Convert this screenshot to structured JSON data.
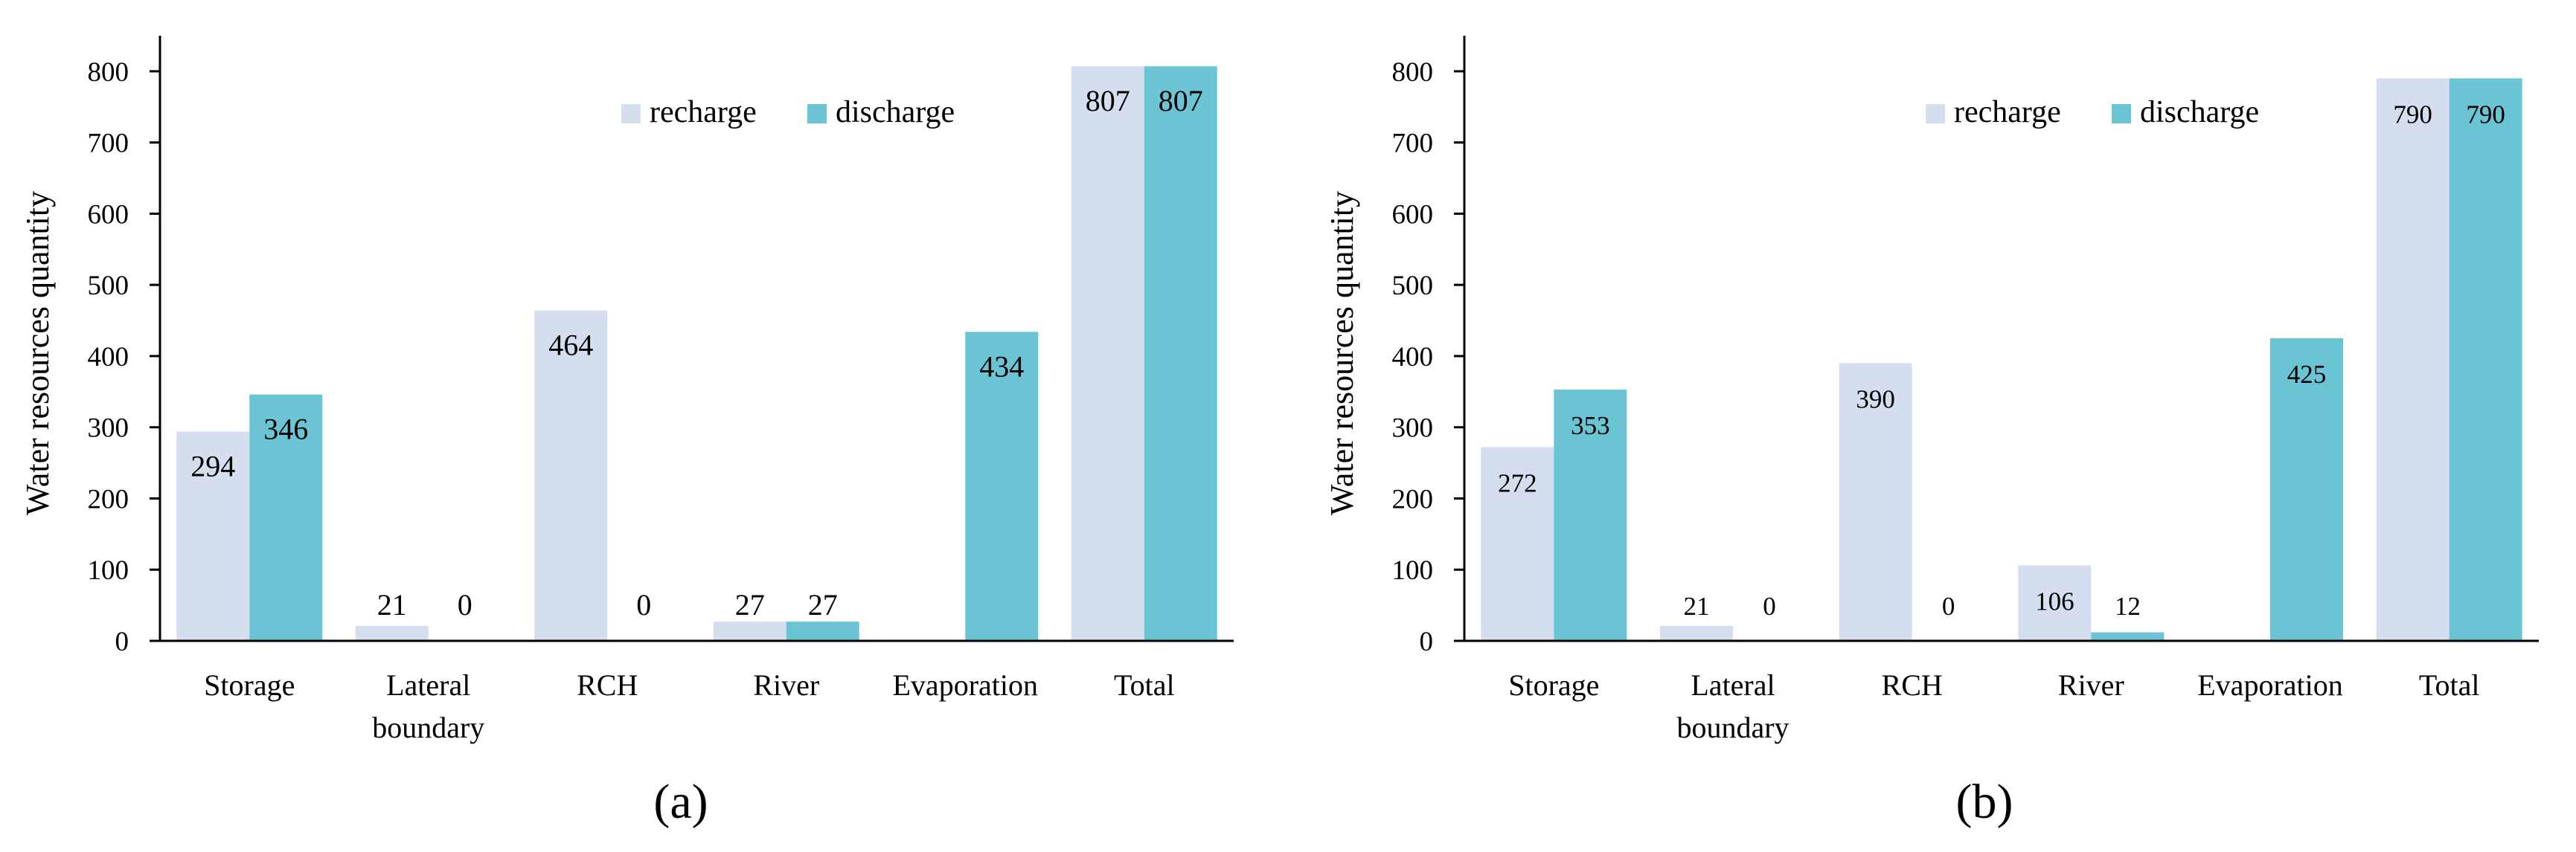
{
  "colors": {
    "recharge": "#D5DEEF",
    "discharge": "#6BC4D4",
    "axis": "#000000"
  },
  "chart_data": [
    {
      "type": "bar",
      "caption": "(a)",
      "categories": [
        [
          "Storage"
        ],
        [
          "Lateral",
          "boundary"
        ],
        [
          "RCH"
        ],
        [
          "River"
        ],
        [
          "Evaporation"
        ],
        [
          "Total"
        ]
      ],
      "series": [
        {
          "name": "recharge",
          "values": [
            294,
            21,
            464,
            27,
            0,
            807
          ],
          "labels": [
            "294",
            "21",
            "464",
            "27",
            "",
            "807"
          ]
        },
        {
          "name": "discharge",
          "values": [
            346,
            0,
            0,
            27,
            434,
            807
          ],
          "labels": [
            "346",
            "0",
            "0",
            "27",
            "434",
            "807"
          ]
        }
      ],
      "yticks": [
        "0",
        "100",
        "200",
        "300",
        "400",
        "500",
        "600",
        "700",
        "800"
      ],
      "ylim": [
        0,
        850
      ],
      "ylabel": "Water resources quantity",
      "xlabel": "",
      "legend": "top-center"
    },
    {
      "type": "bar",
      "caption": "(b)",
      "categories": [
        [
          "Storage"
        ],
        [
          "Lateral",
          "boundary"
        ],
        [
          "RCH"
        ],
        [
          "River"
        ],
        [
          "Evaporation"
        ],
        [
          "Total"
        ]
      ],
      "series": [
        {
          "name": "recharge",
          "values": [
            272,
            21,
            390,
            106,
            0,
            790
          ],
          "labels": [
            "272",
            "21",
            "390",
            "106",
            "",
            "790"
          ]
        },
        {
          "name": "discharge",
          "values": [
            353,
            0,
            0,
            12,
            425,
            790
          ],
          "labels": [
            "353",
            "0",
            "0",
            "12",
            "425",
            "790"
          ]
        }
      ],
      "yticks": [
        "0",
        "100",
        "200",
        "300",
        "400",
        "500",
        "600",
        "700",
        "800"
      ],
      "ylim": [
        0,
        850
      ],
      "ylabel": "Water resources quantity",
      "xlabel": "",
      "legend": "top-center"
    }
  ]
}
